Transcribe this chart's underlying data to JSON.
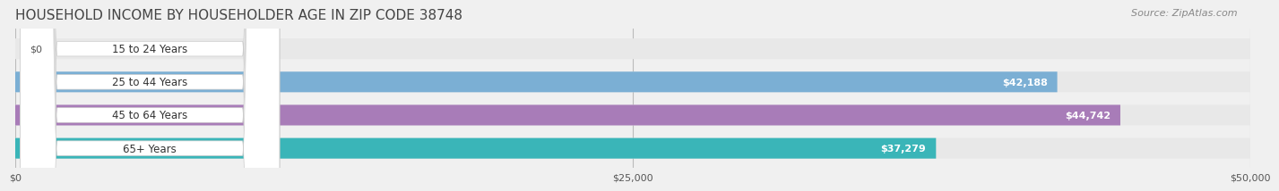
{
  "title": "HOUSEHOLD INCOME BY HOUSEHOLDER AGE IN ZIP CODE 38748",
  "source": "Source: ZipAtlas.com",
  "categories": [
    "15 to 24 Years",
    "25 to 44 Years",
    "45 to 64 Years",
    "65+ Years"
  ],
  "values": [
    0,
    42188,
    44742,
    37279
  ],
  "bar_colors": [
    "#f08080",
    "#7bafd4",
    "#a87cb8",
    "#3ab5b8"
  ],
  "label_colors": [
    "#555555",
    "#ffffff",
    "#ffffff",
    "#ffffff"
  ],
  "bar_labels": [
    "$0",
    "$42,188",
    "$44,742",
    "$37,279"
  ],
  "xlim": [
    0,
    50000
  ],
  "xticks": [
    0,
    25000,
    50000
  ],
  "xticklabels": [
    "$0",
    "$25,000",
    "$50,000"
  ],
  "background_color": "#f0f0f0",
  "bar_bg_color": "#e8e8e8",
  "title_fontsize": 11,
  "source_fontsize": 8,
  "label_fontsize": 8,
  "category_fontsize": 8.5
}
